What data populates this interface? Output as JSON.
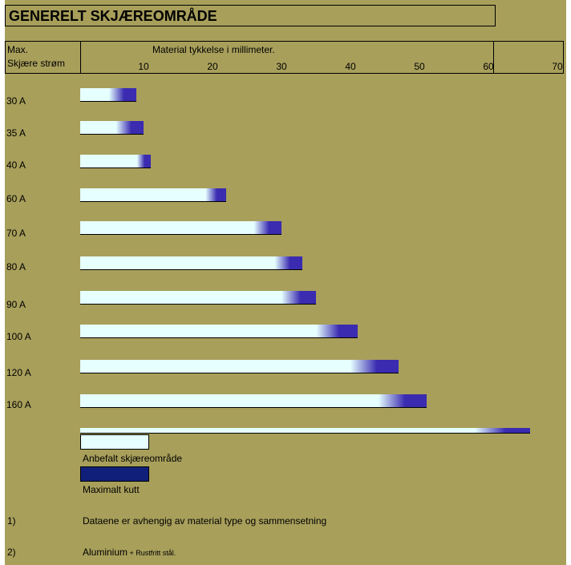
{
  "title": "GENERELT SKJÆREOMRÅDE",
  "header": {
    "col1_line1": "Max.",
    "col1_line2": "Skjære strøm",
    "axis_label": "Material tykkelse i millimeter."
  },
  "colors": {
    "background": "#a89f5b",
    "recommended": "#e6ffff",
    "maximal": "#3a2bb0",
    "maximal_legend": "#10207a"
  },
  "chart_data": {
    "type": "bar",
    "orientation": "horizontal",
    "xlabel": "Material tykkelse i millimeter.",
    "xlim": [
      0,
      70
    ],
    "xticks": [
      10,
      20,
      30,
      40,
      50,
      60,
      70
    ],
    "categories": [
      "30 A",
      "35 A",
      "40 A",
      "60  A",
      "70 A",
      "80 A",
      "90 A",
      "100 A",
      "120 A",
      "160 A"
    ],
    "series": [
      {
        "name": "Anbefalt skjæreområde",
        "values": [
          5,
          6,
          9,
          19,
          26,
          29,
          30,
          35,
          40,
          44
        ]
      },
      {
        "name": "Maximalt kutt",
        "values": [
          9,
          10,
          11,
          22,
          30,
          33,
          35,
          41,
          47,
          51
        ]
      }
    ],
    "extra_bar": {
      "recommended": 58,
      "maximal": 66
    }
  },
  "legend": {
    "recommended_label": "Anbefalt skjæreområde",
    "maximal_label": "Maximalt kutt"
  },
  "notes": [
    {
      "num": "1)",
      "text": "Dataene er avhengig av material type og sammensetning",
      "small": ""
    },
    {
      "num": "2)",
      "text": "Aluminium",
      "small": " + Rustfritt stål."
    }
  ]
}
